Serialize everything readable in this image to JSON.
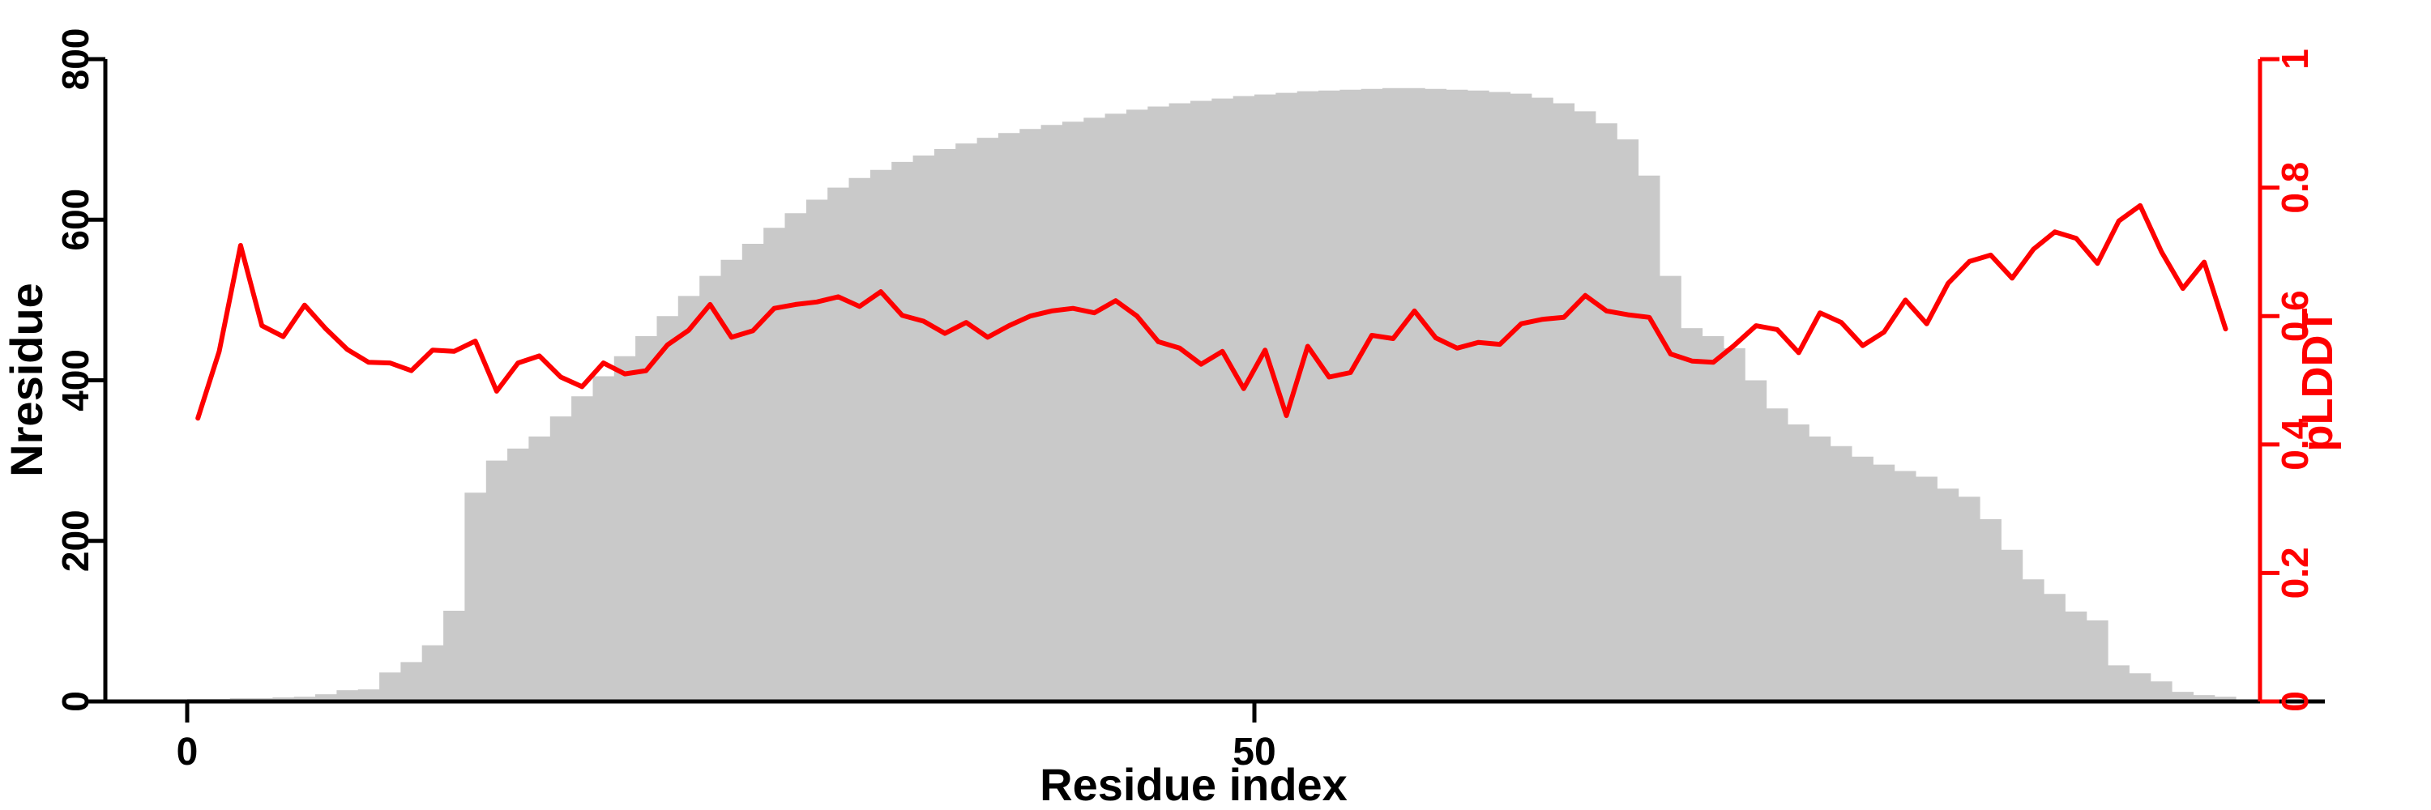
{
  "chart_data": {
    "type": "bar",
    "subtype": "dual-axis bar+line",
    "title": "",
    "xlabel": "Residue index",
    "ylabel_left": "Nresidue",
    "ylabel_right": "pLDDT",
    "xlim": [
      0,
      100.3
    ],
    "ylim_left": [
      0,
      800
    ],
    "ylim_right": [
      0,
      1
    ],
    "grid": false,
    "legend_position": "none",
    "x_tick_values": [
      0,
      50
    ],
    "x_tick_labels": [
      "0",
      "50"
    ],
    "y_left_tick_values": [
      0,
      200,
      400,
      600,
      800
    ],
    "y_left_tick_labels": [
      "0",
      "200",
      "400",
      "600",
      "800"
    ],
    "y_right_tick_values": [
      0,
      0.2,
      0.4,
      0.6,
      0.8,
      1
    ],
    "y_right_tick_labels": [
      "0",
      "0.2",
      "0.4",
      "0.6",
      "0.8",
      "1"
    ],
    "colors": {
      "bars": "#c9c9c9",
      "line": "#fe0000",
      "left_axis": "#000000",
      "right_axis": "#fe0000",
      "background": "#ffffff"
    },
    "bar_series": {
      "name": "Nresidue",
      "x_start": 0,
      "x_step": 1,
      "values": [
        3,
        3,
        4,
        4,
        5,
        6,
        9,
        14,
        15,
        36,
        49,
        70,
        113,
        260,
        300,
        315,
        330,
        355,
        380,
        405,
        430,
        455,
        480,
        505,
        530,
        550,
        570,
        590,
        608,
        625,
        640,
        652,
        662,
        672,
        680,
        688,
        695,
        702,
        708,
        713,
        718,
        722,
        727,
        732,
        737,
        741,
        745,
        748,
        751,
        754,
        756,
        758,
        760,
        761,
        762,
        763,
        764,
        764,
        763,
        762,
        761,
        759,
        757,
        752,
        745,
        735,
        720,
        700,
        655,
        530,
        465,
        455,
        440,
        400,
        365,
        345,
        330,
        318,
        305,
        295,
        287,
        280,
        265,
        255,
        227,
        189,
        152,
        134,
        112,
        101,
        45,
        35,
        25,
        12,
        8,
        6
      ]
    },
    "line_series": {
      "name": "pLDDT",
      "x_offset": 0.5,
      "x_step": 1,
      "values": [
        0.441,
        0.545,
        0.71,
        0.585,
        0.568,
        0.617,
        0.58,
        0.548,
        0.528,
        0.527,
        0.515,
        0.547,
        0.545,
        0.561,
        0.483,
        0.527,
        0.538,
        0.505,
        0.49,
        0.527,
        0.51,
        0.515,
        0.555,
        0.578,
        0.618,
        0.567,
        0.577,
        0.612,
        0.618,
        0.622,
        0.63,
        0.615,
        0.638,
        0.601,
        0.592,
        0.573,
        0.59,
        0.567,
        0.585,
        0.6,
        0.608,
        0.612,
        0.605,
        0.624,
        0.6,
        0.56,
        0.55,
        0.525,
        0.545,
        0.487,
        0.547,
        0.445,
        0.553,
        0.505,
        0.512,
        0.57,
        0.565,
        0.608,
        0.566,
        0.55,
        0.559,
        0.556,
        0.588,
        0.595,
        0.598,
        0.632,
        0.608,
        0.602,
        0.598,
        0.541,
        0.53,
        0.528,
        0.555,
        0.585,
        0.579,
        0.543,
        0.605,
        0.59,
        0.554,
        0.575,
        0.625,
        0.588,
        0.651,
        0.685,
        0.695,
        0.659,
        0.704,
        0.731,
        0.721,
        0.682,
        0.748,
        0.772,
        0.7,
        0.643,
        0.684,
        0.58
      ]
    }
  }
}
